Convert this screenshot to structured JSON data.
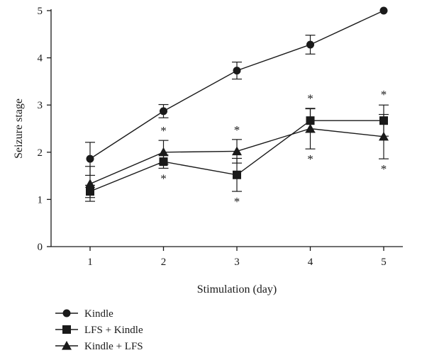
{
  "chart_data": {
    "type": "line",
    "title": "",
    "xlabel": "Stimulation (day)",
    "ylabel": "Seizure stage",
    "x": [
      1,
      2,
      3,
      4,
      5
    ],
    "x_tick_labels": [
      "1",
      "2",
      "3",
      "4",
      "5"
    ],
    "ylim": [
      0,
      5
    ],
    "y_ticks": [
      0,
      1,
      2,
      3,
      4,
      5
    ],
    "y_tick_labels": [
      "0",
      "1",
      "2",
      "3",
      "4",
      "5"
    ],
    "grid": false,
    "legend_position": "bottom-left",
    "series": [
      {
        "name": "Kindle",
        "marker": "circle",
        "values": [
          1.86,
          2.87,
          3.73,
          4.28,
          5.0
        ],
        "error": [
          0.35,
          0.14,
          0.18,
          0.2,
          0.0
        ]
      },
      {
        "name": "LFS + Kindle",
        "marker": "square",
        "values": [
          1.17,
          1.8,
          1.52,
          2.67,
          2.67
        ],
        "error": [
          0.13,
          0.14,
          0.35,
          0.25,
          0.33
        ],
        "significance": [
          "",
          "*",
          "*",
          "*",
          "*"
        ]
      },
      {
        "name": "Kindle + LFS",
        "marker": "triangle",
        "values": [
          1.33,
          2.0,
          2.02,
          2.5,
          2.33
        ],
        "error": [
          0.37,
          0.25,
          0.25,
          0.43,
          0.47
        ],
        "significance": [
          "",
          "*",
          "*",
          "*",
          "*"
        ]
      }
    ]
  }
}
